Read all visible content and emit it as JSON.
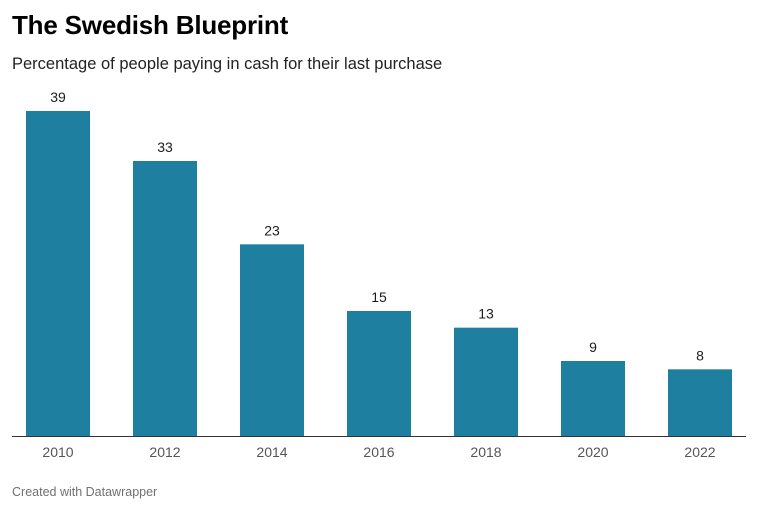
{
  "header": {
    "title": "The Swedish Blueprint",
    "subtitle": "Percentage of people paying in cash for their last purchase"
  },
  "footer": {
    "credit": "Created with Datawrapper"
  },
  "colors": {
    "bar": "#1f7fa0",
    "axis": "#333333"
  },
  "chart_data": {
    "type": "bar",
    "title": "The Swedish Blueprint",
    "subtitle": "Percentage of people paying in cash for their last purchase",
    "categories": [
      "2010",
      "2012",
      "2014",
      "2016",
      "2018",
      "2020",
      "2022"
    ],
    "values": [
      39,
      33,
      23,
      15,
      13,
      9,
      8
    ],
    "xlabel": "",
    "ylabel": "",
    "ylim": [
      0,
      39
    ],
    "grid": false,
    "legend": "none",
    "data_labels": "above"
  }
}
